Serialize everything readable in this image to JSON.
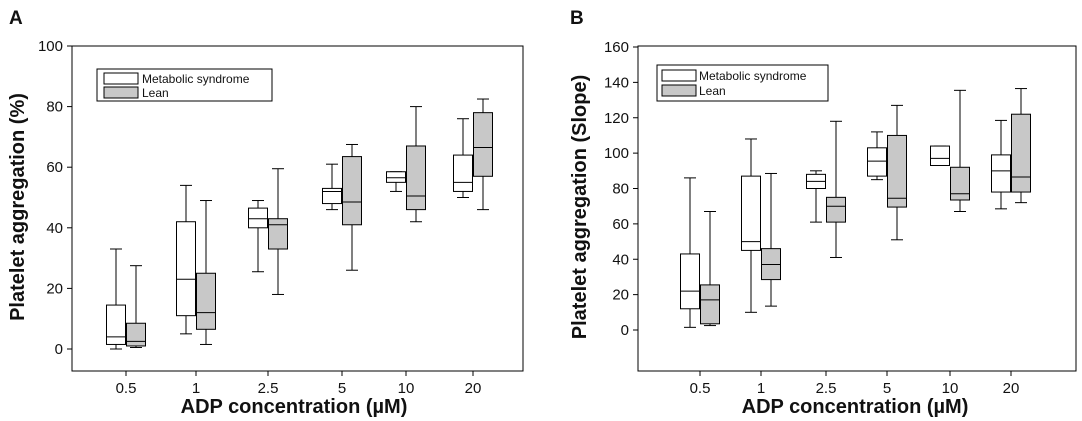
{
  "chart_data": [
    {
      "type": "box",
      "panel_label": "A",
      "xlabel": "ADP concentration (µM)",
      "ylabel": "Platelet aggregation (%)",
      "ylim": [
        0,
        100
      ],
      "yticks": [
        0,
        20,
        40,
        60,
        80,
        100
      ],
      "categories": [
        "0.5",
        "1",
        "2.5",
        "5",
        "10",
        "20"
      ],
      "legend": {
        "position": "top-left",
        "items": [
          "Metabolic syndrome",
          "Lean"
        ]
      },
      "series": [
        {
          "name": "Metabolic syndrome",
          "color": "#ffffff",
          "boxes": [
            {
              "min": 0,
              "q1": 1.5,
              "median": 4,
              "q3": 14.5,
              "max": 33
            },
            {
              "min": 5,
              "q1": 11,
              "median": 23,
              "q3": 42,
              "max": 54
            },
            {
              "min": 25.5,
              "q1": 40,
              "median": 43,
              "q3": 46.5,
              "max": 49
            },
            {
              "min": 46,
              "q1": 48,
              "median": 52,
              "q3": 53,
              "max": 61
            },
            {
              "min": 52,
              "q1": 55,
              "median": 56.5,
              "q3": 58.5,
              "max": 58.5
            },
            {
              "min": 50,
              "q1": 52,
              "median": 55,
              "q3": 64,
              "max": 76
            }
          ]
        },
        {
          "name": "Lean",
          "color": "#c8c8c8",
          "boxes": [
            {
              "min": 0.5,
              "q1": 1,
              "median": 2.5,
              "q3": 8.5,
              "max": 27.5
            },
            {
              "min": 1.5,
              "q1": 6.5,
              "median": 12,
              "q3": 25,
              "max": 49
            },
            {
              "min": 18,
              "q1": 33,
              "median": 41,
              "q3": 43,
              "max": 59.5
            },
            {
              "min": 26,
              "q1": 41,
              "median": 48.5,
              "q3": 63.5,
              "max": 67.5
            },
            {
              "min": 42,
              "q1": 46,
              "median": 50.5,
              "q3": 67,
              "max": 80
            },
            {
              "min": 46,
              "q1": 57,
              "median": 66.5,
              "q3": 78,
              "max": 82.5
            }
          ]
        }
      ]
    },
    {
      "type": "box",
      "panel_label": "B",
      "xlabel": "ADP concentration (µM)",
      "ylabel": "Platelet aggregation (Slope)",
      "ylim": [
        -20,
        160
      ],
      "yticks": [
        0,
        20,
        40,
        60,
        80,
        100,
        120,
        140,
        160
      ],
      "categories": [
        "0.5",
        "1",
        "2.5",
        "5",
        "10",
        "20"
      ],
      "legend": {
        "position": "top-left",
        "items": [
          "Metabolic syndrome",
          "Lean"
        ]
      },
      "series": [
        {
          "name": "Metabolic syndrome",
          "color": "#ffffff",
          "boxes": [
            {
              "min": 1.5,
              "q1": 12,
              "median": 22,
              "q3": 43,
              "max": 86
            },
            {
              "min": 10,
              "q1": 45,
              "median": 50,
              "q3": 87,
              "max": 108
            },
            {
              "min": 61,
              "q1": 80,
              "median": 84,
              "q3": 88,
              "max": 90
            },
            {
              "min": 85,
              "q1": 87,
              "median": 95.5,
              "q3": 103,
              "max": 112
            },
            {
              "min": 93,
              "q1": 93,
              "median": 97,
              "q3": 104,
              "max": 104
            },
            {
              "min": 68.5,
              "q1": 78,
              "median": 90,
              "q3": 99,
              "max": 118.5
            }
          ]
        },
        {
          "name": "Lean",
          "color": "#c8c8c8",
          "boxes": [
            {
              "min": 2.5,
              "q1": 3.5,
              "median": 17,
              "q3": 25.5,
              "max": 67
            },
            {
              "min": 13.5,
              "q1": 28.5,
              "median": 37,
              "q3": 46,
              "max": 88.5
            },
            {
              "min": 41,
              "q1": 61,
              "median": 70,
              "q3": 75,
              "max": 118
            },
            {
              "min": 51,
              "q1": 69.5,
              "median": 74.5,
              "q3": 110,
              "max": 127
            },
            {
              "min": 67,
              "q1": 73.5,
              "median": 77,
              "q3": 92,
              "max": 135.5
            },
            {
              "min": 72,
              "q1": 78,
              "median": 86.5,
              "q3": 122,
              "max": 136.5
            }
          ]
        }
      ]
    }
  ]
}
